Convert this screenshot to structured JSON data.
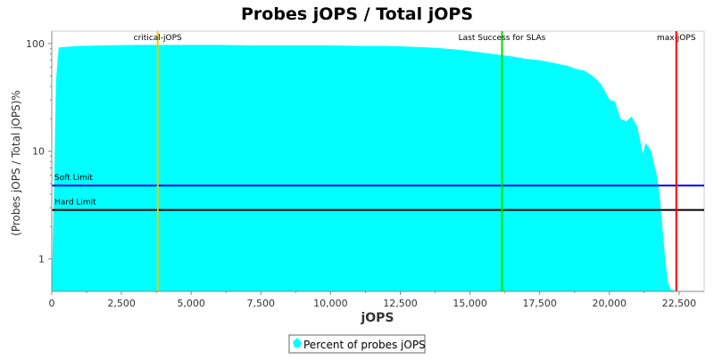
{
  "chart_data": {
    "type": "area",
    "title": "Probes jOPS / Total jOPS",
    "xlabel": "jOPS",
    "ylabel": "(Probes jOPS / Total jOPS)%",
    "xlim": [
      0,
      23400
    ],
    "ylim": [
      0.5,
      130
    ],
    "yscale": "log",
    "grid": false,
    "legend_position": "bottom",
    "x_ticks": [
      0,
      2500,
      5000,
      7500,
      10000,
      12500,
      15000,
      17500,
      20000,
      22500
    ],
    "x_tick_labels": [
      "0",
      "2,500",
      "5,000",
      "7,500",
      "10,000",
      "12,500",
      "15,000",
      "17,500",
      "20,000",
      "22,500"
    ],
    "y_ticks": [
      1,
      10,
      100
    ],
    "y_tick_labels": [
      "1",
      "10",
      "100"
    ],
    "series": [
      {
        "name": "Percent of probes jOPS",
        "color": "#00ffff",
        "x": [
          0,
          100,
          150,
          250,
          500,
          1000,
          2000,
          3000,
          4000,
          5000,
          6000,
          7000,
          8000,
          9000,
          10000,
          11000,
          12000,
          12500,
          13000,
          13500,
          14000,
          14500,
          15000,
          15500,
          16000,
          16500,
          17000,
          17500,
          18000,
          18500,
          18800,
          19100,
          19400,
          19600,
          19800,
          20000,
          20200,
          20400,
          20600,
          20800,
          21000,
          21200,
          21300,
          21500,
          21700,
          21800,
          21900,
          22000,
          22100,
          22200,
          22500,
          23000,
          23400
        ],
        "y": [
          0.5,
          8,
          45,
          92,
          93,
          95,
          96,
          97,
          97,
          97,
          97,
          96,
          96,
          96,
          96,
          95,
          95,
          94,
          93,
          92,
          90,
          88,
          85,
          82,
          79,
          76,
          72,
          70,
          66,
          62,
          58,
          56,
          50,
          45,
          38,
          30,
          29,
          20,
          19,
          21,
          17,
          9.5,
          12,
          10,
          6,
          4,
          2,
          1,
          0.6,
          0.52,
          0.5,
          0.5,
          0.5
        ]
      }
    ],
    "vertical_markers": [
      {
        "label": "critical-jOPS",
        "x": 3800,
        "color": "#f0c800"
      },
      {
        "label": "Last Success for SLAs",
        "x": 16150,
        "color": "#00dd00"
      },
      {
        "label": "max-jOPS",
        "x": 22400,
        "color": "#ff0000"
      }
    ],
    "horizontal_markers": [
      {
        "label": "Soft Limit",
        "y": 4.8,
        "color": "#0000ff"
      },
      {
        "label": "Hard Limit",
        "y": 2.85,
        "color": "#000000"
      }
    ]
  }
}
